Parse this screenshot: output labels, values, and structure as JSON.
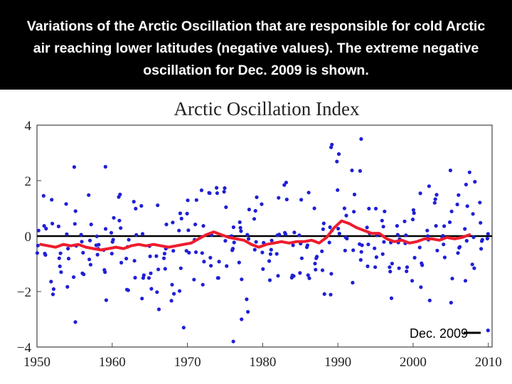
{
  "caption": "Variations of the Arctic Oscillation that are responsible for cold Arctic air reaching lower latitudes (negative values). The extreme negative oscillation for Dec. 2009 is shown.",
  "colors": {
    "points": "#1f1fd6",
    "smooth": "#ee1c2e",
    "zero_line": "#000000",
    "background": "#ffffff",
    "caption_bg": "#000000"
  },
  "chart_data": {
    "type": "scatter",
    "title": "Arctic Oscillation Index",
    "xlabel": "",
    "ylabel": "",
    "xlim": [
      1950,
      2010.5
    ],
    "ylim": [
      -4,
      4
    ],
    "x_ticks": [
      "1950",
      "1960",
      "1970",
      "1980",
      "1990",
      "2000",
      "2010"
    ],
    "y_ticks": [
      "4",
      "2",
      "0",
      "−2",
      "−4"
    ],
    "grid": false,
    "annotation": "Dec. 2009",
    "series": [
      {
        "kind": "monthly_points",
        "x": [],
        "y": []
      },
      {
        "kind": "smoothed_line",
        "x": [
          1950.5,
          1951.5,
          1952.5,
          1953.5,
          1954.5,
          1955.5,
          1956.5,
          1957.5,
          1958.5,
          1959.5,
          1960.5,
          1961.5,
          1962.5,
          1963.5,
          1964.5,
          1965.5,
          1966.5,
          1967.5,
          1968.5,
          1969.5,
          1970.5,
          1971.5,
          1972.5,
          1973.5,
          1974.5,
          1975.5,
          1976.5,
          1977.5,
          1978.5,
          1979.5,
          1980.5,
          1981.5,
          1982.5,
          1983.5,
          1984.5,
          1985.5,
          1986.5,
          1987.5,
          1988.5,
          1989.5,
          1990.5,
          1991.5,
          1992.5,
          1993.5,
          1994.5,
          1995.5,
          1996.5,
          1997.5,
          1998.5,
          1999.5,
          2000.5,
          2001.5,
          2002.5,
          2003.5,
          2004.5,
          2005.5,
          2006.5,
          2007.5
        ],
        "y": [
          -0.3,
          -0.35,
          -0.4,
          -0.3,
          -0.35,
          -0.3,
          -0.4,
          -0.45,
          -0.5,
          -0.45,
          -0.4,
          -0.45,
          -0.35,
          -0.3,
          -0.35,
          -0.3,
          -0.35,
          -0.4,
          -0.35,
          -0.3,
          -0.25,
          -0.1,
          0.05,
          0.15,
          0.05,
          -0.05,
          -0.1,
          -0.15,
          -0.3,
          -0.4,
          -0.3,
          -0.25,
          -0.2,
          -0.25,
          -0.2,
          -0.2,
          -0.15,
          -0.25,
          -0.05,
          0.3,
          0.55,
          0.45,
          0.3,
          0.2,
          0.1,
          0.1,
          -0.1,
          -0.2,
          -0.15,
          -0.25,
          -0.2,
          -0.1,
          -0.1,
          -0.15,
          -0.05,
          -0.1,
          -0.05,
          0.05
        ]
      }
    ]
  }
}
